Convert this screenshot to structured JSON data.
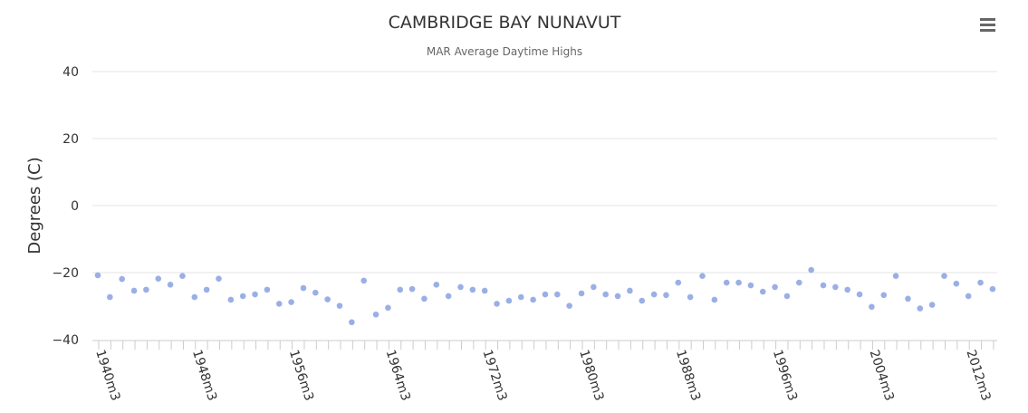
{
  "chart_data": {
    "type": "scatter",
    "title": "CAMBRIDGE BAY NUNAVUT",
    "subtitle": "MAR Average Daytime Highs",
    "xlabel": "",
    "ylabel": "Degrees (C)",
    "ylim": [
      -40,
      40
    ],
    "yticks": [
      40,
      20,
      0,
      -20,
      -40
    ],
    "grid": true,
    "legend": "none",
    "point_color": "#9aafe5",
    "x_tick_labels": [
      "1940m3",
      "1948m3",
      "1956m3",
      "1964m3",
      "1972m3",
      "1980m3",
      "1988m3",
      "1996m3",
      "2004m3",
      "2012m3"
    ],
    "x_tick_label_every": 8,
    "x": [
      "1940m3",
      "1941m3",
      "1942m3",
      "1943m3",
      "1944m3",
      "1945m3",
      "1946m3",
      "1947m3",
      "1948m3",
      "1949m3",
      "1950m3",
      "1951m3",
      "1952m3",
      "1953m3",
      "1954m3",
      "1955m3",
      "1956m3",
      "1957m3",
      "1958m3",
      "1959m3",
      "1960m3",
      "1961m3",
      "1962m3",
      "1963m3",
      "1964m3",
      "1965m3",
      "1966m3",
      "1967m3",
      "1968m3",
      "1969m3",
      "1970m3",
      "1971m3",
      "1972m3",
      "1973m3",
      "1974m3",
      "1975m3",
      "1976m3",
      "1977m3",
      "1978m3",
      "1979m3",
      "1980m3",
      "1981m3",
      "1982m3",
      "1983m3",
      "1984m3",
      "1985m3",
      "1986m3",
      "1987m3",
      "1988m3",
      "1989m3",
      "1990m3",
      "1991m3",
      "1992m3",
      "1993m3",
      "1994m3",
      "1995m3",
      "1996m3",
      "1997m3",
      "1998m3",
      "1999m3",
      "2000m3",
      "2001m3",
      "2002m3",
      "2003m3",
      "2004m3",
      "2005m3",
      "2006m3",
      "2007m3",
      "2008m3",
      "2009m3",
      "2010m3",
      "2011m3",
      "2012m3",
      "2013m3",
      "2014m3"
    ],
    "y": [
      -20.8,
      -27.3,
      -21.9,
      -25.4,
      -25.1,
      -21.8,
      -23.6,
      -21.0,
      -27.3,
      -25.1,
      -21.8,
      -28.1,
      -27.0,
      -26.5,
      -25.1,
      -29.3,
      -28.8,
      -24.6,
      -26.0,
      -28.0,
      -29.9,
      -34.8,
      -22.4,
      -32.5,
      -30.5,
      -25.1,
      -24.9,
      -27.8,
      -23.6,
      -27.0,
      -24.3,
      -25.1,
      -25.4,
      -29.3,
      -28.4,
      -27.3,
      -28.1,
      -26.5,
      -26.5,
      -29.9,
      -26.2,
      -24.3,
      -26.5,
      -27.0,
      -25.4,
      -28.4,
      -26.5,
      -26.7,
      -23.0,
      -27.3,
      -21.0,
      -28.1,
      -23.0,
      -23.0,
      -23.8,
      -25.7,
      -24.3,
      -27.0,
      -23.0,
      -19.2,
      -23.8,
      -24.3,
      -25.1,
      -26.5,
      -30.2,
      -26.7,
      -21.0,
      -27.8,
      -30.7,
      -29.6,
      -21.0,
      -23.3,
      -27.0,
      -23.0,
      -24.9
    ]
  },
  "toolbar": {
    "menu_icon": "hamburger-menu-icon"
  }
}
